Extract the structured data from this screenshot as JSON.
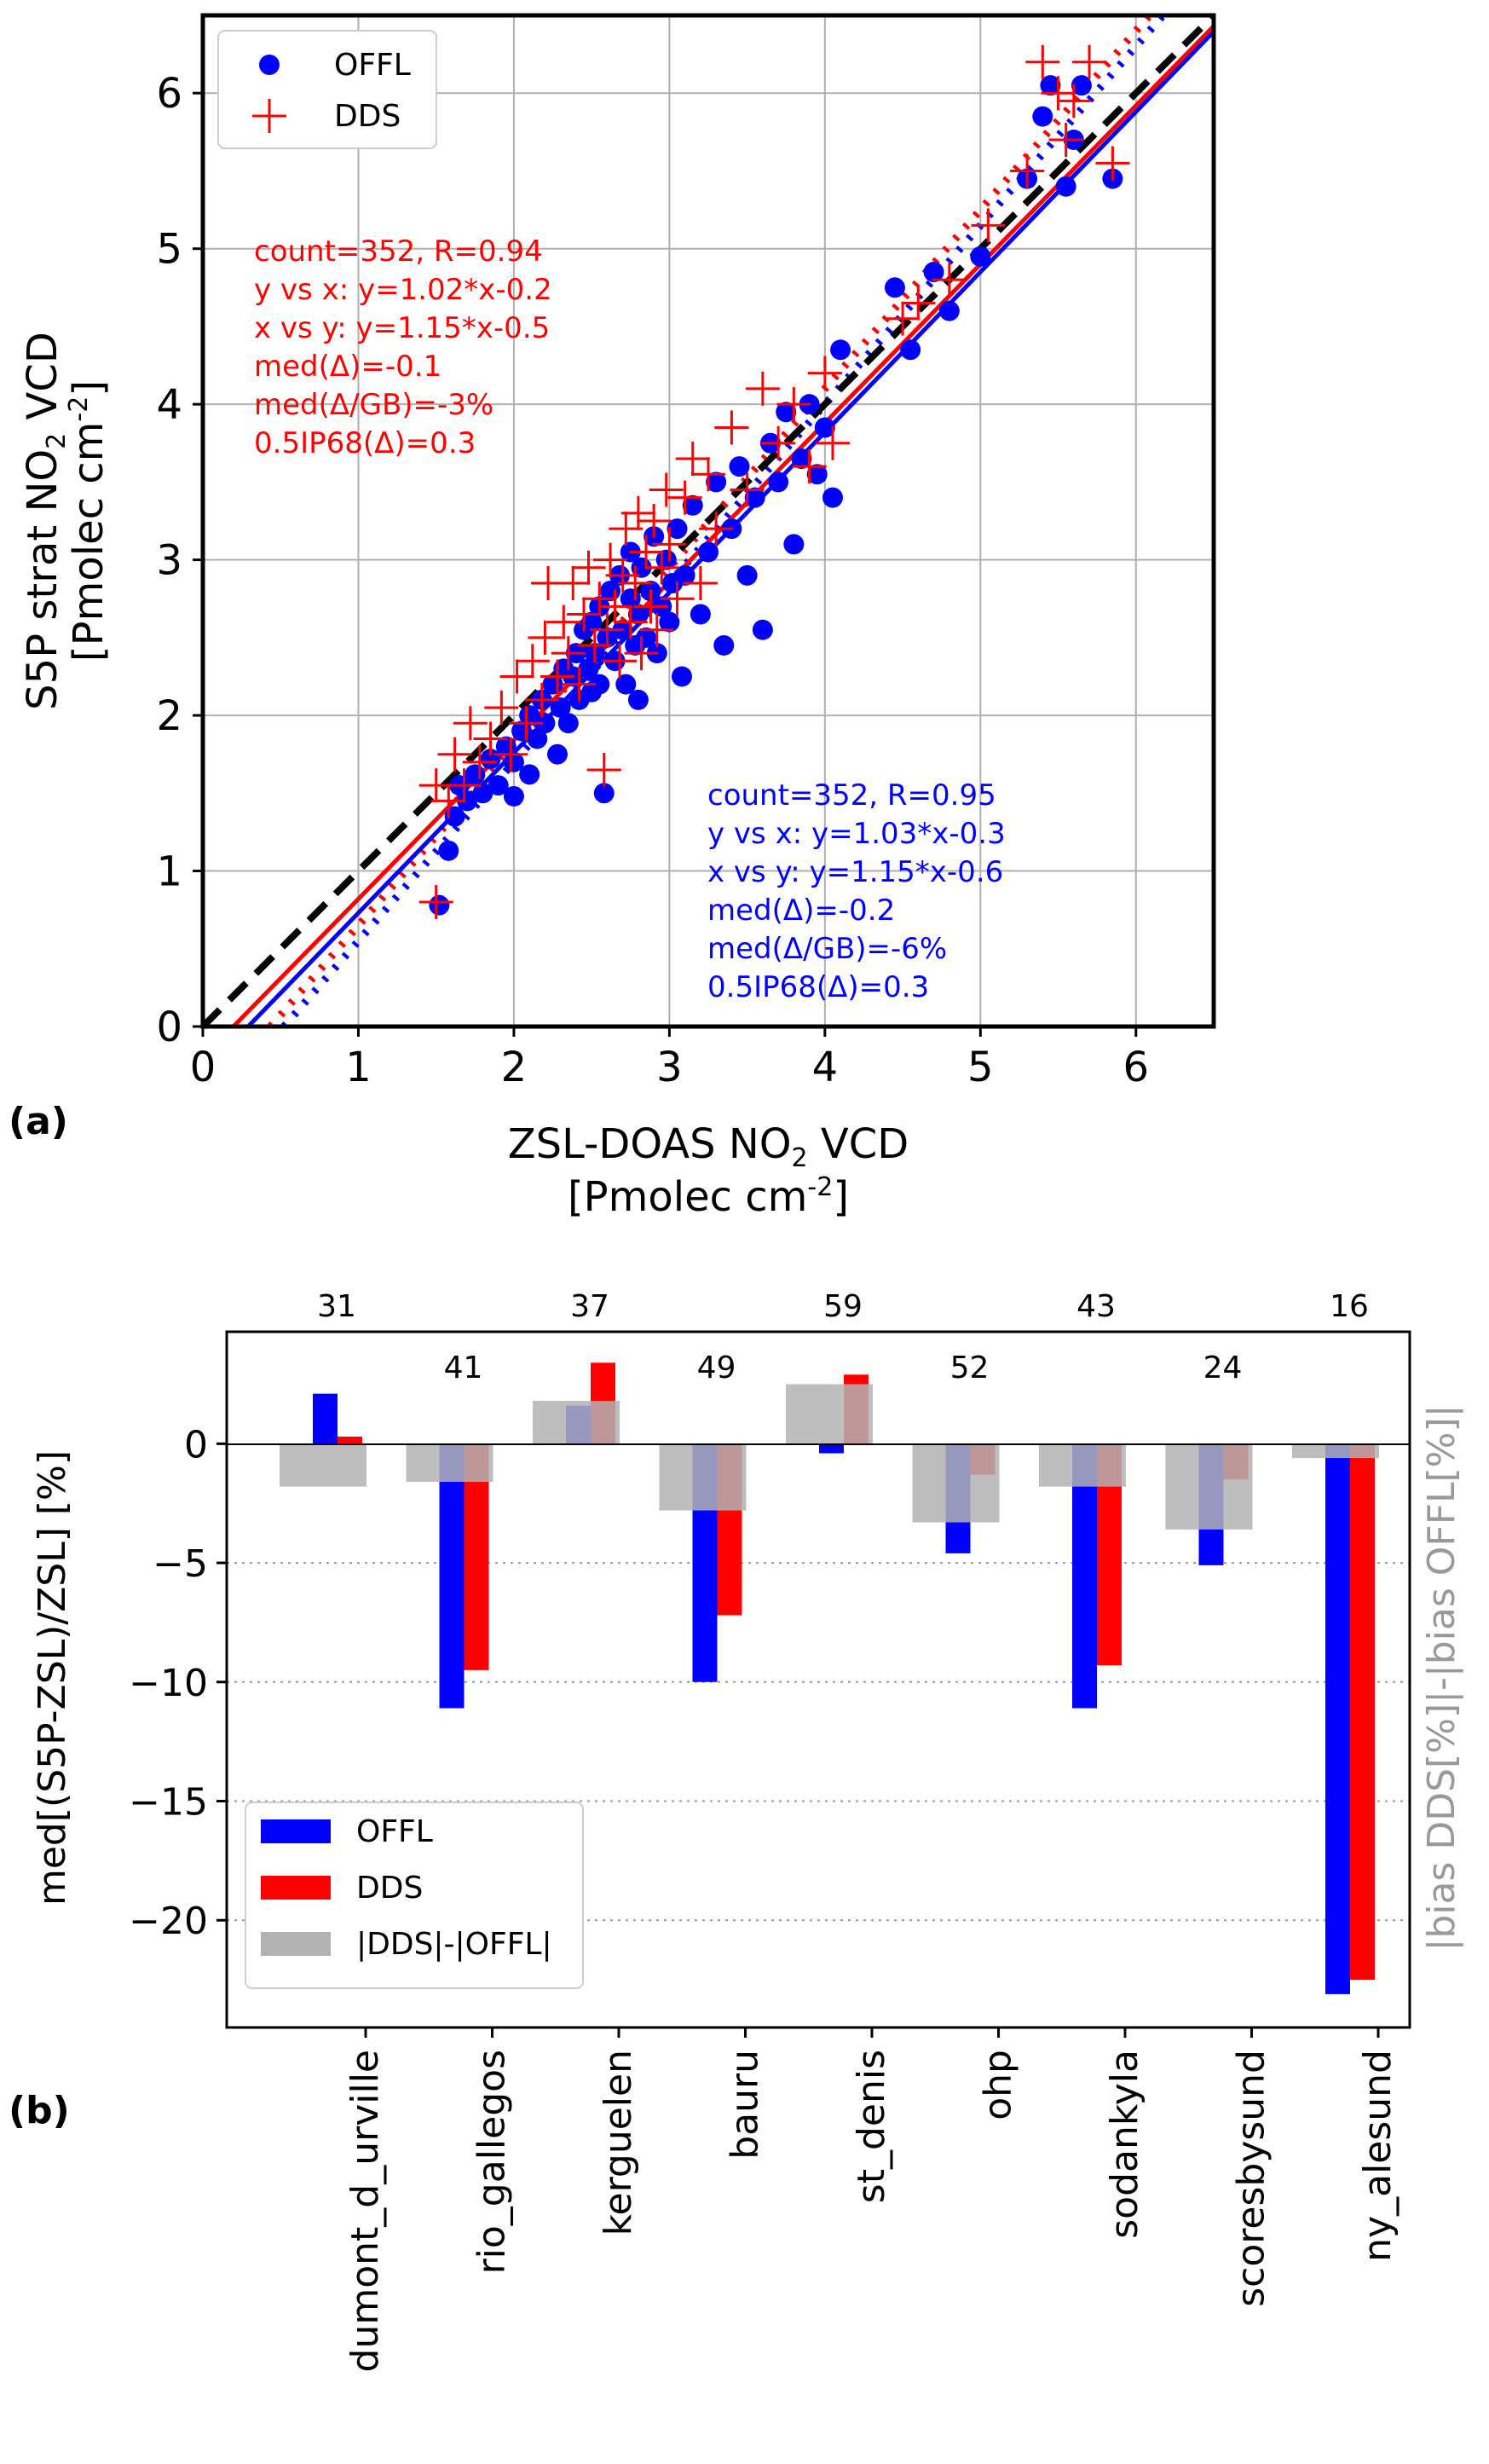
{
  "chart_data": [
    {
      "panel_label": "(a)",
      "type": "scatter",
      "title": "",
      "xlabel": [
        "ZSL-DOAS NO",
        "2",
        " VCD"
      ],
      "xlabel_unit": [
        "[Pmolec cm",
        "-2",
        "]"
      ],
      "ylabel": [
        "S5P strat NO",
        "2",
        " VCD"
      ],
      "ylabel_unit": [
        "[Pmolec cm",
        "-2",
        "]"
      ],
      "xlim": [
        0,
        6.5
      ],
      "ylim": [
        0,
        6.5
      ],
      "xticks": [
        0,
        1,
        2,
        3,
        4,
        5,
        6
      ],
      "yticks": [
        0,
        1,
        2,
        3,
        4,
        5,
        6
      ],
      "grid": true,
      "legend_position": "top-left",
      "series": [
        {
          "name": "OFFL",
          "marker": "circle",
          "color": "#0000ff",
          "fit_xy": {
            "slope": 1.03,
            "intercept": -0.3
          },
          "fit_yx": {
            "slope": 1.15,
            "intercept": -0.6
          },
          "points": [
            [
              1.52,
              0.78
            ],
            [
              1.58,
              1.13
            ],
            [
              1.62,
              1.35
            ],
            [
              1.65,
              1.55
            ],
            [
              1.7,
              1.45
            ],
            [
              1.75,
              1.62
            ],
            [
              1.8,
              1.5
            ],
            [
              1.85,
              1.72
            ],
            [
              1.9,
              1.55
            ],
            [
              1.95,
              1.8
            ],
            [
              2.0,
              1.48
            ],
            [
              2.0,
              1.7
            ],
            [
              2.05,
              1.9
            ],
            [
              2.1,
              1.62
            ],
            [
              2.1,
              2.0
            ],
            [
              2.15,
              1.85
            ],
            [
              2.18,
              2.1
            ],
            [
              2.2,
              1.95
            ],
            [
              2.25,
              2.2
            ],
            [
              2.28,
              1.75
            ],
            [
              2.3,
              2.05
            ],
            [
              2.32,
              2.3
            ],
            [
              2.35,
              1.95
            ],
            [
              2.38,
              2.25
            ],
            [
              2.4,
              2.4
            ],
            [
              2.42,
              2.1
            ],
            [
              2.45,
              2.55
            ],
            [
              2.48,
              2.3
            ],
            [
              2.5,
              2.15
            ],
            [
              2.5,
              2.6
            ],
            [
              2.52,
              2.4
            ],
            [
              2.55,
              2.7
            ],
            [
              2.55,
              2.2
            ],
            [
              2.58,
              1.5
            ],
            [
              2.6,
              2.5
            ],
            [
              2.62,
              2.8
            ],
            [
              2.65,
              2.35
            ],
            [
              2.68,
              2.9
            ],
            [
              2.7,
              2.55
            ],
            [
              2.72,
              2.2
            ],
            [
              2.75,
              2.75
            ],
            [
              2.75,
              3.05
            ],
            [
              2.78,
              2.45
            ],
            [
              2.8,
              2.65
            ],
            [
              2.8,
              2.1
            ],
            [
              2.82,
              2.95
            ],
            [
              2.85,
              2.5
            ],
            [
              2.88,
              2.8
            ],
            [
              2.9,
              3.15
            ],
            [
              2.92,
              2.4
            ],
            [
              2.95,
              2.7
            ],
            [
              2.98,
              3.0
            ],
            [
              3.0,
              2.6
            ],
            [
              3.02,
              2.85
            ],
            [
              3.05,
              3.2
            ],
            [
              3.08,
              2.25
            ],
            [
              3.1,
              2.9
            ],
            [
              3.15,
              3.35
            ],
            [
              3.2,
              2.65
            ],
            [
              3.25,
              3.05
            ],
            [
              3.3,
              3.5
            ],
            [
              3.35,
              2.45
            ],
            [
              3.4,
              3.2
            ],
            [
              3.45,
              3.6
            ],
            [
              3.5,
              2.9
            ],
            [
              3.55,
              3.4
            ],
            [
              3.6,
              2.55
            ],
            [
              3.65,
              3.75
            ],
            [
              3.7,
              3.5
            ],
            [
              3.75,
              3.95
            ],
            [
              3.8,
              3.1
            ],
            [
              3.85,
              3.65
            ],
            [
              3.9,
              4.0
            ],
            [
              3.95,
              3.55
            ],
            [
              4.0,
              3.85
            ],
            [
              4.05,
              3.4
            ],
            [
              4.1,
              4.35
            ],
            [
              4.45,
              4.75
            ],
            [
              4.55,
              4.35
            ],
            [
              4.7,
              4.85
            ],
            [
              4.8,
              4.6
            ],
            [
              5.0,
              4.95
            ],
            [
              5.3,
              5.45
            ],
            [
              5.4,
              5.85
            ],
            [
              5.45,
              6.05
            ],
            [
              5.55,
              5.4
            ],
            [
              5.6,
              5.7
            ],
            [
              5.65,
              6.05
            ],
            [
              5.85,
              5.45
            ]
          ]
        },
        {
          "name": "DDS",
          "marker": "plus",
          "color": "#ff0000",
          "fit_xy": {
            "slope": 1.02,
            "intercept": -0.2
          },
          "fit_yx": {
            "slope": 1.15,
            "intercept": -0.5
          },
          "points": [
            [
              1.5,
              0.8
            ],
            [
              1.5,
              1.55
            ],
            [
              1.58,
              1.45
            ],
            [
              1.62,
              1.75
            ],
            [
              1.68,
              1.55
            ],
            [
              1.72,
              1.95
            ],
            [
              1.78,
              1.7
            ],
            [
              1.85,
              1.85
            ],
            [
              1.92,
              2.05
            ],
            [
              1.98,
              1.75
            ],
            [
              2.02,
              2.25
            ],
            [
              2.08,
              1.95
            ],
            [
              2.12,
              2.35
            ],
            [
              2.18,
              2.1
            ],
            [
              2.2,
              2.5
            ],
            [
              2.22,
              2.85
            ],
            [
              2.28,
              2.25
            ],
            [
              2.32,
              2.6
            ],
            [
              2.35,
              2.4
            ],
            [
              2.38,
              2.85
            ],
            [
              2.42,
              2.2
            ],
            [
              2.45,
              2.65
            ],
            [
              2.48,
              2.95
            ],
            [
              2.52,
              2.45
            ],
            [
              2.55,
              2.75
            ],
            [
              2.58,
              1.65
            ],
            [
              2.6,
              2.55
            ],
            [
              2.62,
              3.0
            ],
            [
              2.65,
              2.7
            ],
            [
              2.68,
              2.35
            ],
            [
              2.7,
              2.9
            ],
            [
              2.72,
              3.2
            ],
            [
              2.75,
              2.6
            ],
            [
              2.78,
              2.85
            ],
            [
              2.8,
              3.3
            ],
            [
              2.82,
              2.4
            ],
            [
              2.85,
              3.05
            ],
            [
              2.88,
              2.7
            ],
            [
              2.9,
              3.25
            ],
            [
              2.92,
              2.55
            ],
            [
              2.95,
              2.95
            ],
            [
              2.98,
              3.45
            ],
            [
              3.0,
              3.1
            ],
            [
              3.05,
              2.75
            ],
            [
              3.1,
              3.4
            ],
            [
              3.15,
              3.65
            ],
            [
              3.2,
              2.85
            ],
            [
              3.25,
              3.55
            ],
            [
              3.3,
              3.2
            ],
            [
              3.4,
              3.85
            ],
            [
              3.5,
              3.45
            ],
            [
              3.6,
              4.1
            ],
            [
              3.7,
              3.75
            ],
            [
              3.8,
              4.0
            ],
            [
              3.9,
              3.6
            ],
            [
              4.0,
              4.2
            ],
            [
              4.05,
              3.75
            ],
            [
              4.5,
              4.55
            ],
            [
              4.6,
              4.65
            ],
            [
              4.8,
              4.8
            ],
            [
              5.05,
              5.15
            ],
            [
              5.3,
              5.5
            ],
            [
              5.4,
              6.2
            ],
            [
              5.5,
              6.0
            ],
            [
              5.55,
              5.7
            ],
            [
              5.6,
              5.95
            ],
            [
              5.7,
              6.2
            ],
            [
              5.85,
              5.55
            ]
          ]
        },
        {
          "name": "",
          "type": "line",
          "style": "dashed",
          "color": "#000000",
          "slope": 1.0,
          "intercept": 0.0
        }
      ],
      "annotations": [
        {
          "color": "#ff0000",
          "lines": [
            "count=352, R=0.94",
            "y vs x: y=1.02*x-0.2",
            "x vs y: y=1.15*x-0.5",
            "med(Δ)=-0.1",
            "med(Δ/GB)=-3%",
            "0.5IP68(Δ)=0.3"
          ]
        },
        {
          "color": "#0000ff",
          "lines": [
            "count=352, R=0.95",
            "y vs x: y=1.03*x-0.3",
            "x vs y: y=1.15*x-0.6",
            "med(Δ)=-0.2",
            "med(Δ/GB)=-6%",
            "0.5IP68(Δ)=0.3"
          ]
        }
      ]
    },
    {
      "panel_label": "(b)",
      "type": "bar",
      "title": "",
      "ylabel": "med[(S5P-ZSL)/ZSL] [%]",
      "ylabel_right": "|bias DDS[%]|-|bias OFFL[%]|",
      "ylim": [
        -24.5,
        4.7
      ],
      "yticks": [
        0,
        -5,
        -10,
        -15,
        -20
      ],
      "ytick_labels": [
        "0",
        "−5",
        "−10",
        "−15",
        "−20"
      ],
      "grid": "dotted horizontal",
      "legend_position": "bottom-left",
      "categories": [
        "dumont_d_urville",
        "rio_gallegos",
        "kerguelen",
        "bauru",
        "st_denis",
        "ohp",
        "sodankyla",
        "scoresbysund",
        "ny_alesund"
      ],
      "counts": [
        "31",
        "41",
        "37",
        "49",
        "59",
        "52",
        "43",
        "24",
        "16"
      ],
      "series": [
        {
          "name": "OFFL",
          "color": "#0000ff",
          "values": [
            2.1,
            -11.1,
            1.6,
            -10.0,
            -0.4,
            -4.6,
            -11.1,
            -5.1,
            -23.1
          ]
        },
        {
          "name": "DDS",
          "color": "#ff0000",
          "values": [
            0.3,
            -9.5,
            3.4,
            -7.2,
            2.9,
            -1.3,
            -9.3,
            -1.5,
            -22.5
          ]
        },
        {
          "name": "|DDS|-|OFFL|",
          "color": "#b3b3b3",
          "values": [
            -1.8,
            -1.6,
            1.8,
            -2.8,
            2.5,
            -3.3,
            -1.8,
            -3.6,
            -0.6
          ]
        }
      ]
    }
  ]
}
